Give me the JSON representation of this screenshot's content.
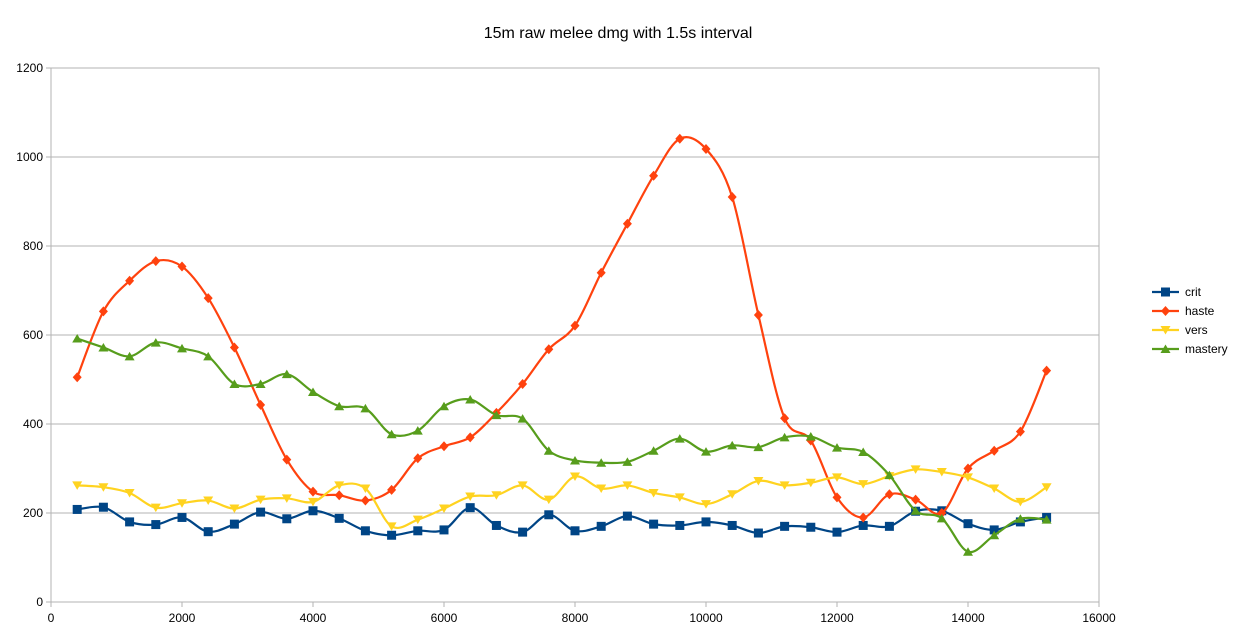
{
  "chart_data": {
    "type": "line",
    "title": "15m raw melee dmg with 1.5s interval",
    "xlabel": "",
    "ylabel": "",
    "xlim": [
      0,
      16000
    ],
    "ylim": [
      0,
      1200
    ],
    "x_ticks": [
      0,
      2000,
      4000,
      6000,
      8000,
      10000,
      12000,
      14000,
      16000
    ],
    "y_ticks": [
      0,
      200,
      400,
      600,
      800,
      1000,
      1200
    ],
    "grid": "horizontal",
    "legend_position": "right",
    "smooth": true,
    "x": [
      400,
      800,
      1200,
      1600,
      2000,
      2400,
      2800,
      3200,
      3600,
      4000,
      4400,
      4800,
      5200,
      5600,
      6000,
      6400,
      6800,
      7200,
      7600,
      8000,
      8400,
      8800,
      9200,
      9600,
      10000,
      10400,
      10800,
      11200,
      11600,
      12000,
      12400,
      12800,
      13200,
      13600,
      14000,
      14400,
      14800,
      15200
    ],
    "series": [
      {
        "name": "crit",
        "color": "#004586",
        "marker": "square",
        "values": [
          208,
          213,
          180,
          174,
          190,
          158,
          175,
          202,
          187,
          205,
          188,
          160,
          150,
          160,
          162,
          212,
          172,
          157,
          196,
          160,
          170,
          193,
          175,
          172,
          180,
          172,
          155,
          170,
          168,
          157,
          172,
          170,
          204,
          205,
          176,
          162,
          180,
          190
        ]
      },
      {
        "name": "haste",
        "color": "#ff420e",
        "marker": "diamond",
        "values": [
          505,
          653,
          722,
          766,
          754,
          683,
          572,
          443,
          320,
          248,
          240,
          228,
          252,
          323,
          350,
          370,
          425,
          490,
          568,
          621,
          740,
          850,
          958,
          1041,
          1018,
          910,
          645,
          413,
          363,
          235,
          190,
          242,
          230,
          200,
          300,
          340,
          383,
          520
        ]
      },
      {
        "name": "vers",
        "color": "#ffd320",
        "marker": "triangle-down",
        "values": [
          262,
          258,
          245,
          212,
          222,
          228,
          210,
          230,
          233,
          225,
          262,
          255,
          170,
          185,
          210,
          237,
          240,
          262,
          230,
          282,
          255,
          262,
          245,
          235,
          220,
          242,
          272,
          262,
          268,
          280,
          265,
          283,
          298,
          292,
          280,
          255,
          225,
          258
        ]
      },
      {
        "name": "mastery",
        "color": "#579d1c",
        "marker": "triangle-up",
        "values": [
          592,
          572,
          552,
          583,
          570,
          552,
          490,
          490,
          512,
          472,
          440,
          435,
          377,
          385,
          440,
          455,
          420,
          412,
          340,
          318,
          313,
          315,
          340,
          367,
          338,
          352,
          348,
          370,
          372,
          347,
          337,
          285,
          205,
          188,
          113,
          150,
          187,
          185
        ]
      }
    ]
  }
}
